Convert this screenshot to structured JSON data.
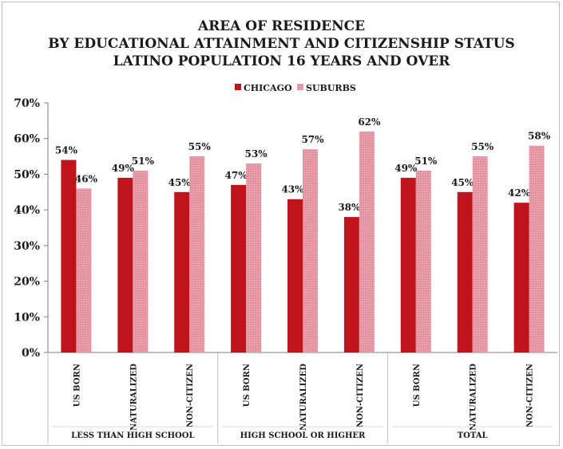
{
  "chart_data": {
    "type": "bar",
    "title_lines": [
      "AREA OF RESIDENCE",
      "BY EDUCATIONAL ATTAINMENT AND CITIZENSHIP STATUS",
      "LATINO POPULATION 16 YEARS AND OVER"
    ],
    "groups": [
      {
        "label": "LESS THAN HIGH SCHOOL",
        "categories": [
          "US BORN",
          "NATURALIZED",
          "NON-CITIZEN"
        ]
      },
      {
        "label": "HIGH SCHOOL OR HIGHER",
        "categories": [
          "US BORN",
          "NATURALIZED",
          "NON-CITIZEN"
        ]
      },
      {
        "label": "TOTAL",
        "categories": [
          "US BORN",
          "NATURALIZED",
          "NON-CITIZEN"
        ]
      }
    ],
    "series": [
      {
        "name": "CHICAGO",
        "color": "#c0141c",
        "values": [
          54,
          49,
          45,
          47,
          43,
          38,
          49,
          45,
          42
        ]
      },
      {
        "name": "SUBURBS",
        "color": "#e593a0",
        "values": [
          46,
          51,
          55,
          53,
          57,
          62,
          51,
          55,
          58
        ]
      }
    ],
    "ylim": [
      0,
      70
    ],
    "yticks": [
      "0%",
      "10%",
      "20%",
      "30%",
      "40%",
      "50%",
      "60%",
      "70%"
    ],
    "value_suffix": "%",
    "legend_position": "top-center",
    "grid": false
  }
}
